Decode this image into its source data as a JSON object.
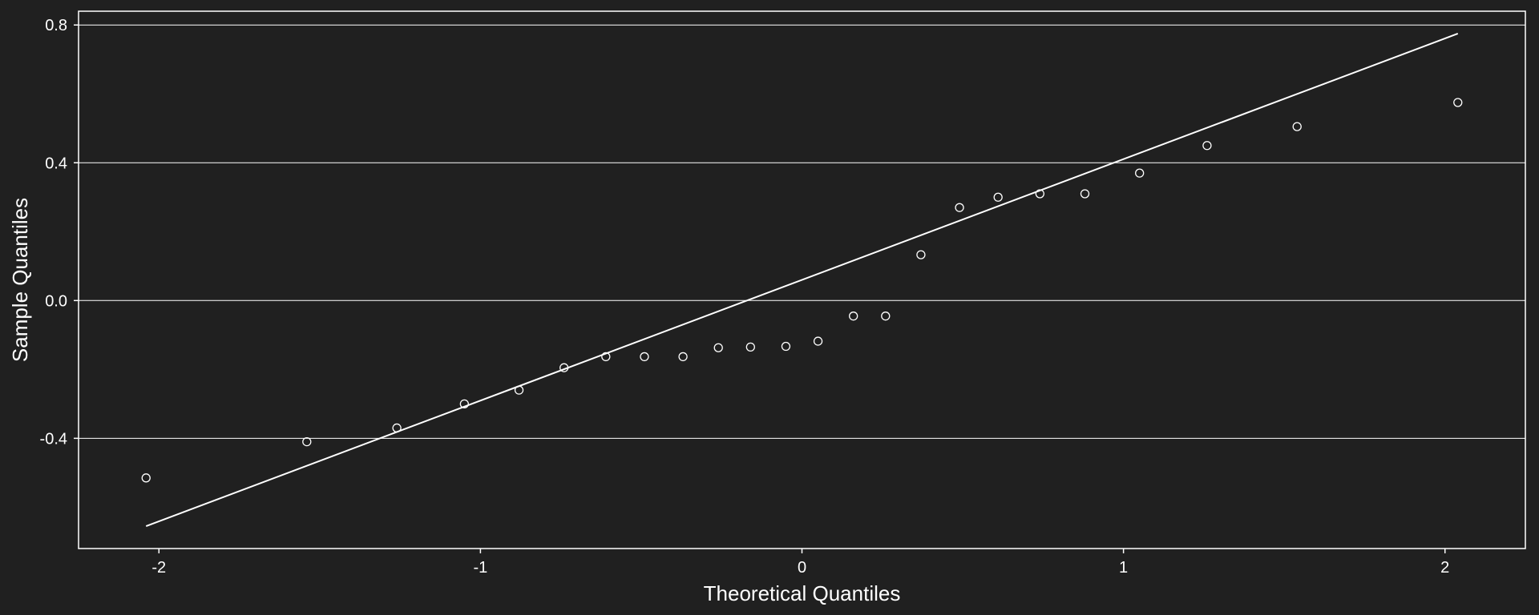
{
  "colors": {
    "background": "#202020",
    "foreground": "#ffffff"
  },
  "chart_data": {
    "type": "scatter",
    "title": "",
    "xlabel": "Theoretical Quantiles",
    "ylabel": "Sample Quantiles",
    "xlim": [
      -2.25,
      2.25
    ],
    "ylim": [
      -0.72,
      0.84
    ],
    "x_ticks": [
      -2,
      -1,
      0,
      1,
      2
    ],
    "x_tick_labels": [
      "-2",
      "-1",
      "0",
      "1",
      "2"
    ],
    "y_ticks": [
      0.8,
      0.4,
      0.0,
      -0.4
    ],
    "y_tick_labels": [
      "0.8",
      "0.4",
      "0.0",
      "-0.4"
    ],
    "grid": "horizontal",
    "marker": "open-circle",
    "points": {
      "x": [
        -2.04,
        -1.54,
        -1.26,
        -1.05,
        -0.88,
        -0.74,
        -0.61,
        -0.49,
        -0.37,
        -0.26,
        -0.16,
        -0.05,
        0.05,
        0.16,
        0.26,
        0.37,
        0.49,
        0.61,
        0.74,
        0.88,
        1.05,
        1.26,
        1.54,
        2.04
      ],
      "y": [
        -0.515,
        -0.41,
        -0.37,
        -0.3,
        -0.26,
        -0.195,
        -0.163,
        -0.163,
        -0.163,
        -0.137,
        -0.135,
        -0.133,
        -0.118,
        -0.045,
        -0.045,
        0.133,
        0.27,
        0.3,
        0.31,
        0.31,
        0.37,
        0.45,
        0.505,
        0.575
      ]
    },
    "reference_line": {
      "x": [
        -2.04,
        2.04
      ],
      "y": [
        -0.655,
        0.775
      ]
    }
  }
}
